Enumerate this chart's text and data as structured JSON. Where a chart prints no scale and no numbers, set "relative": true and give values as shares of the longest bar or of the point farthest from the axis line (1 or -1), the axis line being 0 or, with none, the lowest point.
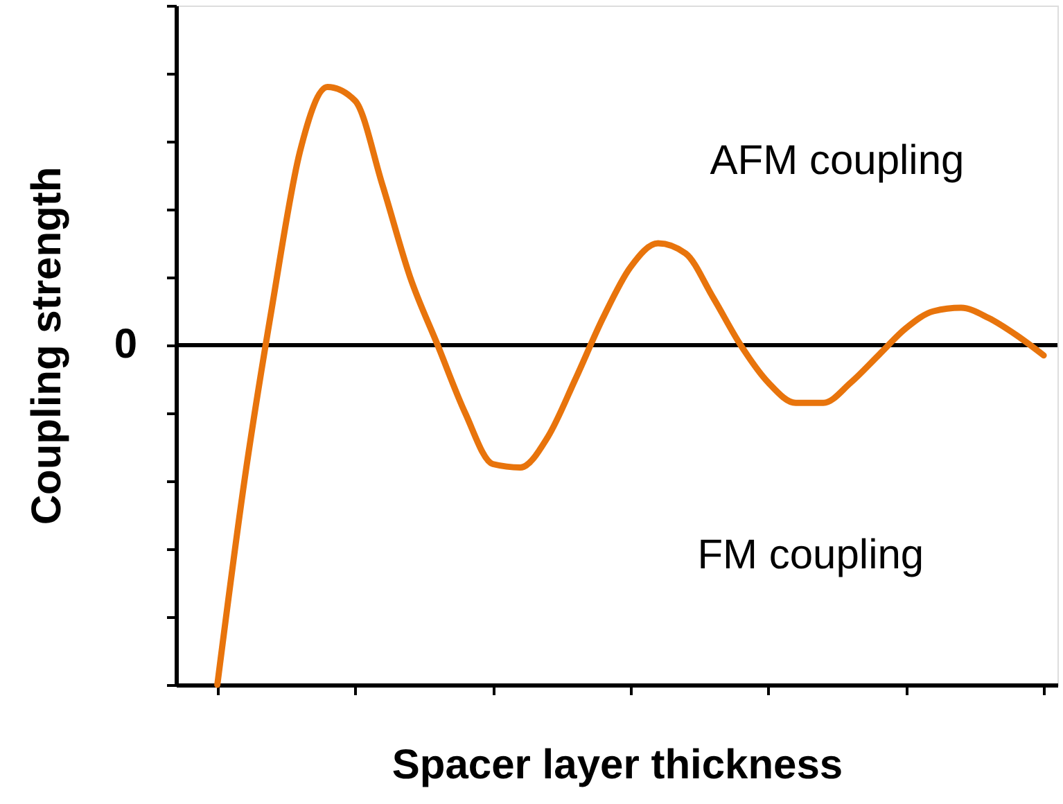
{
  "chart_data": {
    "type": "line",
    "relative": true,
    "xlabel": "Spacer layer thickness",
    "ylabel": "Coupling strength",
    "categories": [
      null,
      null,
      null,
      null,
      null,
      null,
      null,
      null,
      null,
      null,
      null,
      null,
      null,
      null,
      null,
      null,
      null,
      null,
      null,
      null,
      null,
      null,
      null,
      null,
      null,
      null,
      null,
      null,
      null,
      null,
      null
    ],
    "series": [
      {
        "color": "#e8740c",
        "values": [
          -1,
          -0.39,
          0.12,
          0.57,
          0.76,
          0.72,
          0.47,
          0.2,
          0,
          -0.2,
          -0.35,
          -0.36,
          -0.27,
          -0.1,
          0.08,
          0.23,
          0.3,
          0.27,
          0.14,
          0,
          -0.11,
          -0.17,
          -0.17,
          -0.11,
          -0.03,
          0.05,
          0.1,
          0.11,
          0.08,
          0.03,
          -0.03
        ]
      }
    ],
    "ref_lines": [
      {
        "axis": "y",
        "value": 0,
        "label": "0",
        "color": "#000000"
      }
    ],
    "annotations": [
      "AFM coupling",
      "FM coupling"
    ],
    "grid": false,
    "line_style": "solid",
    "marker": "none"
  }
}
